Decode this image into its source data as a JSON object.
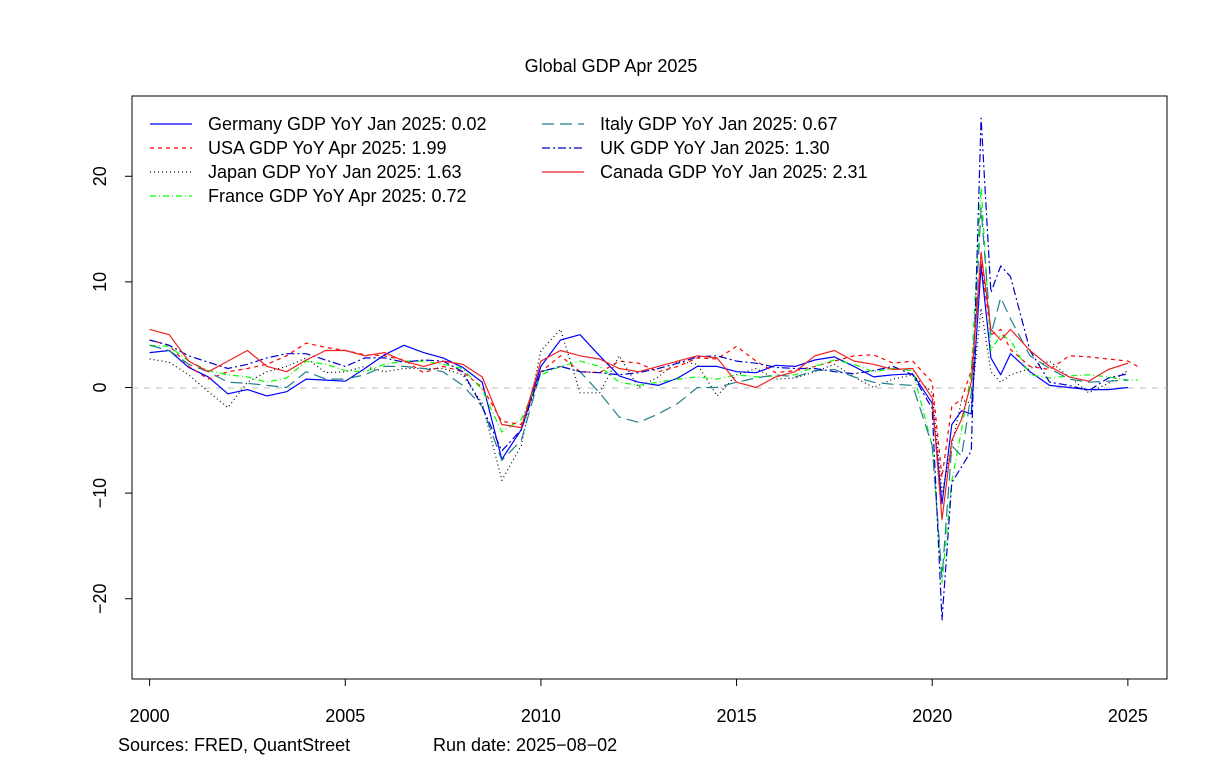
{
  "chart_data": {
    "type": "line",
    "title": "Global GDP Apr 2025",
    "xlabel": "",
    "ylabel": "",
    "xlim": [
      1999.55,
      2026.0
    ],
    "ylim": [
      -27.6,
      27.6
    ],
    "x_ticks": [
      "2000",
      "2005",
      "2010",
      "2015",
      "2020",
      "2025"
    ],
    "y_ticks": [
      "20",
      "10",
      "0",
      "−10",
      "−20"
    ],
    "zero_line": true,
    "grid": false,
    "legend_position": "top-left",
    "series": [
      {
        "name": "Germany GDP YoY Jan 2025: 0.02",
        "color": "#0000ff",
        "dash": "solid",
        "x": [
          2000.0,
          2000.5,
          2001.0,
          2001.5,
          2002.0,
          2002.5,
          2003.0,
          2003.5,
          2004.0,
          2004.5,
          2005.0,
          2005.5,
          2006.0,
          2006.5,
          2007.0,
          2007.5,
          2008.0,
          2008.5,
          2009.0,
          2009.5,
          2010.0,
          2010.5,
          2011.0,
          2011.5,
          2012.0,
          2012.5,
          2013.0,
          2013.5,
          2014.0,
          2014.5,
          2015.0,
          2015.5,
          2016.0,
          2016.5,
          2017.0,
          2017.5,
          2018.0,
          2018.5,
          2019.0,
          2019.5,
          2020.0,
          2020.25,
          2020.5,
          2020.75,
          2021.0,
          2021.25,
          2021.5,
          2021.75,
          2022.0,
          2022.5,
          2023.0,
          2023.5,
          2024.0,
          2024.5,
          2025.0
        ],
        "y": [
          3.3,
          3.5,
          1.9,
          1.0,
          -0.6,
          -0.2,
          -0.8,
          -0.4,
          0.8,
          0.7,
          0.6,
          1.8,
          3.1,
          4.0,
          3.3,
          2.8,
          1.9,
          0.5,
          -6.8,
          -4.0,
          2.0,
          4.5,
          5.0,
          3.0,
          1.1,
          0.5,
          0.2,
          0.9,
          2.0,
          2.0,
          1.5,
          1.4,
          2.1,
          2.0,
          2.6,
          2.9,
          2.0,
          1.0,
          1.2,
          1.3,
          -1.5,
          -11.0,
          -3.5,
          -2.2,
          -2.5,
          11.5,
          2.8,
          1.2,
          3.2,
          1.5,
          0.2,
          0.0,
          -0.2,
          -0.2,
          0.0
        ]
      },
      {
        "name": "USA GDP YoY Apr 2025: 1.99",
        "color": "#ff0000",
        "dash": "4,4",
        "x": [
          2000.0,
          2000.5,
          2001.0,
          2001.5,
          2002.0,
          2002.5,
          2003.0,
          2003.5,
          2004.0,
          2004.5,
          2005.0,
          2005.5,
          2006.0,
          2006.5,
          2007.0,
          2007.5,
          2008.0,
          2008.5,
          2009.0,
          2009.5,
          2010.0,
          2010.5,
          2011.0,
          2011.5,
          2012.0,
          2012.5,
          2013.0,
          2013.5,
          2014.0,
          2014.5,
          2015.0,
          2015.5,
          2016.0,
          2016.5,
          2017.0,
          2017.5,
          2018.0,
          2018.5,
          2019.0,
          2019.5,
          2020.0,
          2020.25,
          2020.5,
          2020.75,
          2021.0,
          2021.25,
          2021.5,
          2021.75,
          2022.0,
          2022.5,
          2023.0,
          2023.5,
          2024.0,
          2024.5,
          2025.0,
          2025.25
        ],
        "y": [
          4.5,
          4.0,
          2.0,
          0.8,
          1.5,
          1.8,
          2.2,
          3.0,
          4.2,
          3.8,
          3.5,
          3.1,
          3.0,
          2.6,
          1.4,
          2.0,
          1.5,
          0.0,
          -3.2,
          -3.5,
          1.5,
          3.0,
          1.5,
          1.4,
          2.5,
          2.3,
          1.5,
          2.0,
          2.8,
          2.7,
          3.9,
          2.5,
          1.4,
          1.6,
          2.0,
          2.5,
          3.0,
          3.1,
          2.3,
          2.5,
          0.5,
          -8.5,
          -1.8,
          -1.1,
          1.6,
          12.0,
          5.0,
          5.5,
          3.6,
          2.0,
          1.7,
          3.0,
          2.9,
          2.7,
          2.5,
          2.0
        ]
      },
      {
        "name": "Japan GDP YoY Jan 2025: 1.63",
        "color": "#000000",
        "dash": "1,3",
        "x": [
          2000.0,
          2000.5,
          2001.0,
          2001.5,
          2002.0,
          2002.5,
          2003.0,
          2003.5,
          2004.0,
          2004.5,
          2005.0,
          2005.5,
          2006.0,
          2006.5,
          2007.0,
          2007.5,
          2008.0,
          2008.5,
          2009.0,
          2009.5,
          2010.0,
          2010.5,
          2011.0,
          2011.5,
          2012.0,
          2012.5,
          2013.0,
          2013.5,
          2014.0,
          2014.5,
          2015.0,
          2015.5,
          2016.0,
          2016.5,
          2017.0,
          2017.5,
          2018.0,
          2018.5,
          2019.0,
          2019.5,
          2020.0,
          2020.25,
          2020.5,
          2020.75,
          2021.0,
          2021.25,
          2021.5,
          2021.75,
          2022.0,
          2022.5,
          2023.0,
          2023.5,
          2024.0,
          2024.5,
          2025.0
        ],
        "y": [
          2.7,
          2.4,
          1.2,
          -0.4,
          -1.9,
          0.5,
          1.5,
          2.0,
          2.8,
          1.4,
          1.5,
          2.0,
          1.5,
          1.8,
          1.8,
          1.8,
          1.2,
          -1.5,
          -8.8,
          -5.5,
          3.5,
          5.5,
          -0.5,
          -0.5,
          3.0,
          0.0,
          1.0,
          2.5,
          2.2,
          -0.8,
          1.2,
          1.8,
          0.8,
          0.9,
          1.5,
          2.2,
          1.0,
          0.0,
          0.8,
          1.2,
          -0.5,
          -10.0,
          -5.5,
          -1.2,
          -1.5,
          7.5,
          1.5,
          0.5,
          1.2,
          1.8,
          2.5,
          1.0,
          -0.5,
          0.4,
          1.6
        ]
      },
      {
        "name": "France GDP YoY Apr 2025: 0.72",
        "color": "#00ff00",
        "dash": "6,3,1,3",
        "x": [
          2000.0,
          2000.5,
          2001.0,
          2001.5,
          2002.0,
          2002.5,
          2003.0,
          2003.5,
          2004.0,
          2004.5,
          2005.0,
          2005.5,
          2006.0,
          2006.5,
          2007.0,
          2007.5,
          2008.0,
          2008.5,
          2009.0,
          2009.5,
          2010.0,
          2010.5,
          2011.0,
          2011.5,
          2012.0,
          2012.5,
          2013.0,
          2013.5,
          2014.0,
          2014.5,
          2015.0,
          2015.5,
          2016.0,
          2016.5,
          2017.0,
          2017.5,
          2018.0,
          2018.5,
          2019.0,
          2019.5,
          2020.0,
          2020.25,
          2020.5,
          2020.75,
          2021.0,
          2021.25,
          2021.5,
          2021.75,
          2022.0,
          2022.5,
          2023.0,
          2023.5,
          2024.0,
          2024.5,
          2025.0,
          2025.25
        ],
        "y": [
          4.0,
          3.9,
          2.5,
          1.6,
          1.2,
          1.0,
          0.5,
          0.9,
          2.5,
          2.2,
          1.6,
          1.5,
          2.2,
          2.5,
          2.5,
          2.2,
          1.8,
          -0.2,
          -4.2,
          -3.0,
          1.2,
          2.0,
          2.5,
          2.0,
          0.5,
          0.2,
          0.5,
          0.8,
          1.0,
          0.8,
          1.2,
          1.0,
          1.1,
          1.2,
          2.0,
          2.6,
          2.2,
          1.5,
          1.8,
          1.6,
          -5.5,
          -18.5,
          -8.8,
          -4.0,
          1.5,
          19.0,
          3.5,
          5.0,
          4.5,
          1.2,
          0.9,
          1.1,
          1.2,
          1.0,
          0.7,
          0.7
        ]
      },
      {
        "name": "Italy GDP YoY Jan 2025: 0.67",
        "color": "#20808c",
        "dash": "12,6",
        "x": [
          2000.0,
          2000.5,
          2001.0,
          2001.5,
          2002.0,
          2002.5,
          2003.0,
          2003.5,
          2004.0,
          2004.5,
          2005.0,
          2005.5,
          2006.0,
          2006.5,
          2007.0,
          2007.5,
          2008.0,
          2008.5,
          2009.0,
          2009.5,
          2010.0,
          2010.5,
          2011.0,
          2011.5,
          2012.0,
          2012.5,
          2013.0,
          2013.5,
          2014.0,
          2014.5,
          2015.0,
          2015.5,
          2016.0,
          2016.5,
          2017.0,
          2017.5,
          2018.0,
          2018.5,
          2019.0,
          2019.5,
          2020.0,
          2020.25,
          2020.5,
          2020.75,
          2021.0,
          2021.25,
          2021.5,
          2021.75,
          2022.0,
          2022.5,
          2023.0,
          2023.5,
          2024.0,
          2024.5,
          2025.0
        ],
        "y": [
          4.0,
          3.5,
          2.2,
          1.5,
          0.5,
          0.4,
          0.2,
          0.0,
          1.5,
          0.8,
          0.8,
          1.2,
          2.0,
          2.0,
          1.8,
          1.5,
          0.2,
          -1.8,
          -6.9,
          -5.0,
          1.5,
          2.0,
          1.5,
          -0.5,
          -2.8,
          -3.3,
          -2.5,
          -1.5,
          0.0,
          0.0,
          0.5,
          0.9,
          1.2,
          1.0,
          1.6,
          1.7,
          1.0,
          0.5,
          0.3,
          0.2,
          -5.5,
          -18.0,
          -5.5,
          -6.5,
          -0.5,
          17.0,
          5.0,
          8.5,
          6.5,
          3.0,
          1.8,
          0.8,
          0.5,
          0.6,
          0.7
        ]
      },
      {
        "name": "UK GDP YoY Jan 2025: 1.30",
        "color": "#0000cd",
        "dash": "8,3,2,3",
        "x": [
          2000.0,
          2000.5,
          2001.0,
          2001.5,
          2002.0,
          2002.5,
          2003.0,
          2003.5,
          2004.0,
          2004.5,
          2005.0,
          2005.5,
          2006.0,
          2006.5,
          2007.0,
          2007.5,
          2008.0,
          2008.5,
          2009.0,
          2009.5,
          2010.0,
          2010.5,
          2011.0,
          2011.5,
          2012.0,
          2012.5,
          2013.0,
          2013.5,
          2014.0,
          2014.5,
          2015.0,
          2015.5,
          2016.0,
          2016.5,
          2017.0,
          2017.5,
          2018.0,
          2018.5,
          2019.0,
          2019.5,
          2020.0,
          2020.25,
          2020.5,
          2020.75,
          2021.0,
          2021.25,
          2021.5,
          2021.75,
          2022.0,
          2022.5,
          2023.0,
          2023.5,
          2024.0,
          2024.5,
          2025.0
        ],
        "y": [
          4.5,
          4.0,
          3.0,
          2.4,
          1.8,
          2.2,
          2.8,
          3.2,
          3.2,
          2.6,
          2.0,
          2.8,
          2.8,
          2.4,
          2.6,
          2.5,
          1.5,
          -1.8,
          -6.0,
          -4.0,
          1.5,
          2.0,
          1.5,
          1.4,
          1.2,
          1.4,
          1.8,
          2.3,
          2.9,
          3.0,
          2.5,
          2.3,
          1.9,
          1.8,
          1.8,
          1.5,
          1.3,
          1.6,
          2.0,
          1.2,
          -2.0,
          -22.0,
          -9.0,
          -7.5,
          -6.0,
          25.5,
          9.0,
          11.5,
          10.5,
          3.5,
          0.5,
          0.2,
          -0.3,
          0.9,
          1.3
        ]
      },
      {
        "name": "Canada GDP YoY Jan 2025: 2.31",
        "color": "#ee2222",
        "dash": "solid",
        "x": [
          2000.0,
          2000.5,
          2001.0,
          2001.5,
          2002.0,
          2002.5,
          2003.0,
          2003.5,
          2004.0,
          2004.5,
          2005.0,
          2005.5,
          2006.0,
          2006.5,
          2007.0,
          2007.5,
          2008.0,
          2008.5,
          2009.0,
          2009.5,
          2010.0,
          2010.5,
          2011.0,
          2011.5,
          2012.0,
          2012.5,
          2013.0,
          2013.5,
          2014.0,
          2014.5,
          2015.0,
          2015.5,
          2016.0,
          2016.5,
          2017.0,
          2017.5,
          2018.0,
          2018.5,
          2019.0,
          2019.5,
          2020.0,
          2020.25,
          2020.5,
          2020.75,
          2021.0,
          2021.25,
          2021.5,
          2021.75,
          2022.0,
          2022.5,
          2023.0,
          2023.5,
          2024.0,
          2024.5,
          2025.0
        ],
        "y": [
          5.5,
          5.0,
          2.5,
          1.5,
          2.5,
          3.5,
          2.0,
          1.5,
          2.6,
          3.5,
          3.5,
          3.0,
          3.3,
          2.5,
          2.0,
          2.5,
          2.2,
          1.0,
          -3.5,
          -3.8,
          2.5,
          3.5,
          3.0,
          2.7,
          1.8,
          1.5,
          2.0,
          2.5,
          3.0,
          2.8,
          0.5,
          0.0,
          1.0,
          1.5,
          3.0,
          3.5,
          2.5,
          2.2,
          1.7,
          1.8,
          -1.0,
          -12.5,
          -5.0,
          -3.0,
          0.5,
          12.8,
          5.5,
          4.5,
          5.5,
          3.5,
          2.0,
          1.0,
          0.6,
          1.7,
          2.3
        ]
      }
    ]
  },
  "footer": {
    "sources": "Sources: FRED, QuantStreet",
    "run_date": "Run date: 2025−08−02"
  }
}
